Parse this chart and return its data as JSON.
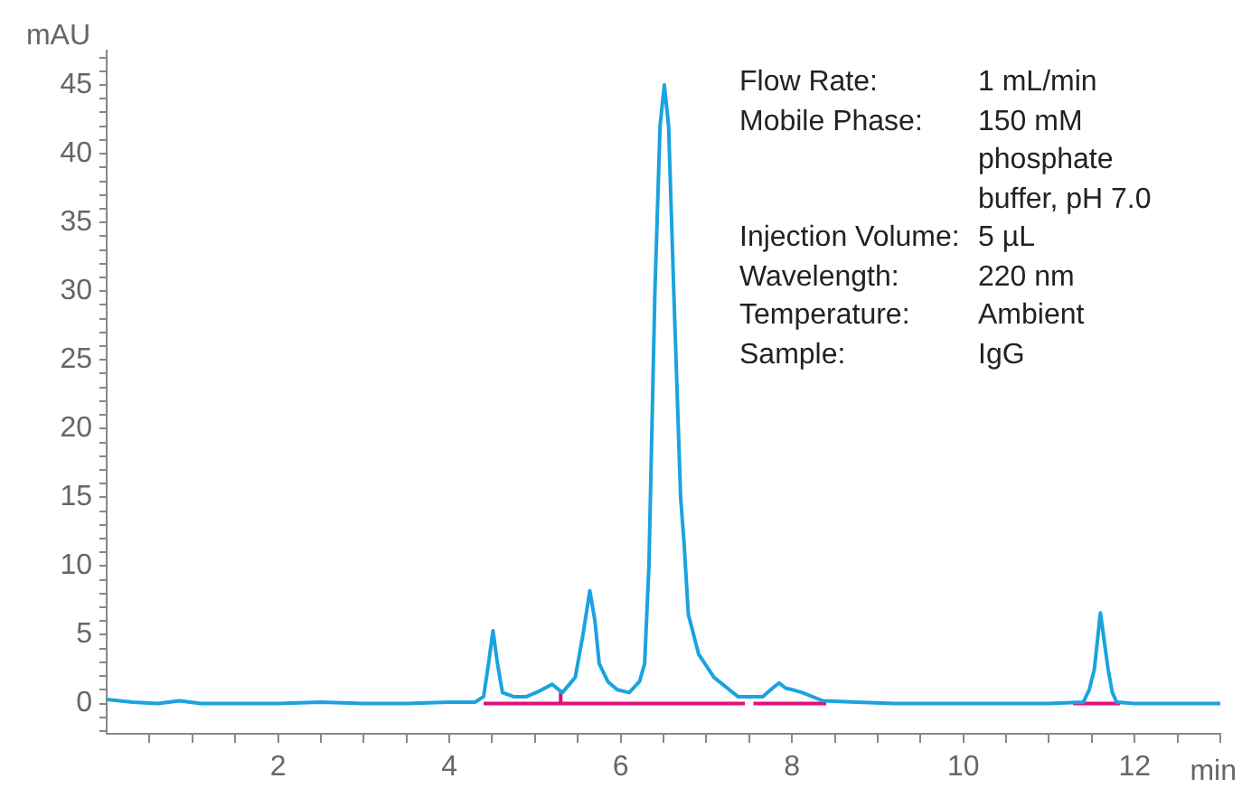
{
  "chart_data": {
    "type": "line",
    "xlabel": "min",
    "ylabel": "mAU",
    "marker": "none",
    "grid": false,
    "legend": false,
    "annotations": [
      "Flow Rate:",
      "1 mL/min",
      "Mobile Phase:",
      "150 mM phosphate buffer, pH 7.0",
      "Injection Volume:",
      "5 µL",
      "Wavelength:",
      "220 nm",
      "Temperature:",
      "Ambient",
      "Sample:",
      "IgG"
    ],
    "xlim": [
      0,
      13
    ],
    "ylim": [
      -2.2,
      47.5
    ],
    "xticks": [
      {
        "value": 0.5,
        "label": null
      },
      {
        "value": 1,
        "label": null
      },
      {
        "value": 1.5,
        "label": null
      },
      2,
      {
        "value": 2.5,
        "label": null
      },
      {
        "value": 3,
        "label": null
      },
      {
        "value": 3.5,
        "label": null
      },
      4,
      {
        "value": 4.5,
        "label": null
      },
      {
        "value": 5,
        "label": null
      },
      {
        "value": 5.5,
        "label": null
      },
      6,
      {
        "value": 6.5,
        "label": null
      },
      {
        "value": 7,
        "label": null
      },
      {
        "value": 7.5,
        "label": null
      },
      8,
      {
        "value": 8.5,
        "label": null
      },
      {
        "value": 9,
        "label": null
      },
      {
        "value": 9.5,
        "label": null
      },
      10,
      {
        "value": 10.5,
        "label": null
      },
      {
        "value": 11,
        "label": null
      },
      {
        "value": 11.5,
        "label": null
      },
      12,
      {
        "value": 12.5,
        "label": null
      },
      {
        "value": 13,
        "label": null
      }
    ],
    "yticks": [
      {
        "value": -2,
        "label": null
      },
      {
        "value": -1,
        "label": null
      },
      0,
      {
        "value": 1,
        "label": null
      },
      {
        "value": 2,
        "label": null
      },
      {
        "value": 3,
        "label": null
      },
      {
        "value": 4,
        "label": null
      },
      5,
      {
        "value": 6,
        "label": null
      },
      {
        "value": 7,
        "label": null
      },
      {
        "value": 8,
        "label": null
      },
      {
        "value": 9,
        "label": null
      },
      10,
      {
        "value": 11,
        "label": null
      },
      {
        "value": 12,
        "label": null
      },
      {
        "value": 13,
        "label": null
      },
      {
        "value": 14,
        "label": null
      },
      15,
      {
        "value": 16,
        "label": null
      },
      {
        "value": 17,
        "label": null
      },
      {
        "value": 18,
        "label": null
      },
      {
        "value": 19,
        "label": null
      },
      20,
      {
        "value": 21,
        "label": null
      },
      {
        "value": 22,
        "label": null
      },
      {
        "value": 23,
        "label": null
      },
      {
        "value": 24,
        "label": null
      },
      25,
      {
        "value": 26,
        "label": null
      },
      {
        "value": 27,
        "label": null
      },
      {
        "value": 28,
        "label": null
      },
      {
        "value": 29,
        "label": null
      },
      30,
      {
        "value": 31,
        "label": null
      },
      {
        "value": 32,
        "label": null
      },
      {
        "value": 33,
        "label": null
      },
      {
        "value": 34,
        "label": null
      },
      35,
      {
        "value": 36,
        "label": null
      },
      {
        "value": 37,
        "label": null
      },
      {
        "value": 38,
        "label": null
      },
      {
        "value": 39,
        "label": null
      },
      40,
      {
        "value": 41,
        "label": null
      },
      {
        "value": 42,
        "label": null
      },
      {
        "value": 43,
        "label": null
      },
      {
        "value": 44,
        "label": null
      },
      45,
      {
        "value": 46,
        "label": null
      },
      {
        "value": 47,
        "label": null
      }
    ],
    "series": [
      {
        "color": "#1aa3e0",
        "x": [
          0,
          0.3,
          0.6,
          0.85,
          1.1,
          1.5,
          2,
          2.5,
          3,
          3.5,
          4,
          4.3,
          4.4,
          4.46,
          4.51,
          4.56,
          4.62,
          4.75,
          4.9,
          5.05,
          5.2,
          5.32,
          5.47,
          5.56,
          5.64,
          5.7,
          5.75,
          5.85,
          5.96,
          6.1,
          6.22,
          6.28,
          6.33,
          6.4,
          6.46,
          6.51,
          6.56,
          6.62,
          6.7,
          6.74,
          6.79,
          6.91,
          7.09,
          7.37,
          7.66,
          7.75,
          7.85,
          7.93,
          8.01,
          8.12,
          8.36,
          8.75,
          9.2,
          10,
          11,
          11.4,
          11.47,
          11.53,
          11.6,
          11.69,
          11.74,
          11.79,
          12,
          12.5,
          13
        ],
        "values": [
          0.3,
          0.1,
          0,
          0.2,
          0,
          0,
          0,
          0.1,
          0,
          0,
          0.1,
          0.1,
          0.5,
          3,
          5.3,
          3,
          0.8,
          0.5,
          0.5,
          0.9,
          1.4,
          0.8,
          1.9,
          5,
          8.2,
          6,
          2.9,
          1.6,
          1,
          0.8,
          1.6,
          2.9,
          10,
          30,
          42,
          45,
          42,
          30,
          15,
          11.7,
          6.5,
          3.6,
          1.9,
          0.5,
          0.5,
          1,
          1.5,
          1.1,
          1,
          0.8,
          0.2,
          0.1,
          0,
          0,
          0,
          0.1,
          1,
          2.5,
          6.6,
          2.5,
          0.8,
          0.1,
          0,
          0,
          0
        ]
      },
      {
        "color": "#e0107a",
        "x": [
          4.4,
          7.45
        ],
        "values": [
          0,
          0
        ]
      },
      {
        "color": "#e0107a",
        "x": [
          7.55,
          8.4
        ],
        "values": [
          0,
          0
        ]
      },
      {
        "color": "#e0107a",
        "x": [
          11.28,
          11.83
        ],
        "values": [
          0,
          0
        ]
      },
      {
        "color": "#e0107a",
        "x": [
          5.3,
          5.3
        ],
        "values": [
          0,
          0.8
        ]
      }
    ]
  }
}
